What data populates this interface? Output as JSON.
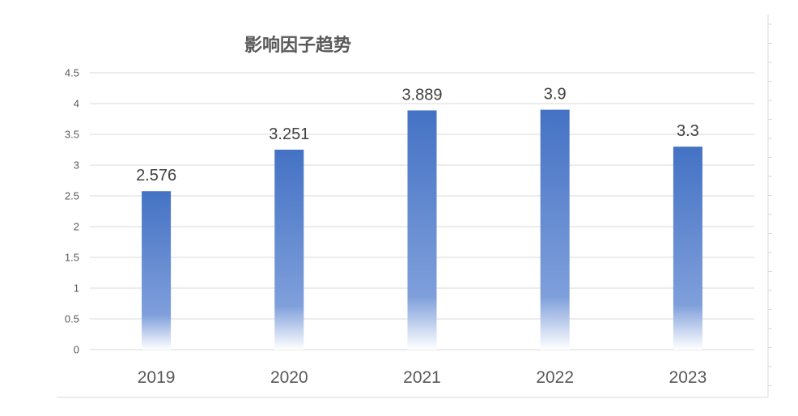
{
  "chart_data": {
    "type": "bar",
    "title": "影响因子趋势",
    "categories": [
      "2019",
      "2020",
      "2021",
      "2022",
      "2023"
    ],
    "values": [
      2.576,
      3.251,
      3.889,
      3.9,
      3.3
    ],
    "value_labels": [
      "2.576",
      "3.251",
      "3.889",
      "3.9",
      "3.3"
    ],
    "ylim": [
      0,
      4.5
    ],
    "yticks": [
      "0",
      "0.5",
      "1",
      "1.5",
      "2",
      "2.5",
      "3",
      "3.5",
      "4",
      "4.5"
    ],
    "xlabel": "",
    "ylabel": "",
    "grid": true,
    "legend": "none",
    "bar_color": "#4472C4"
  }
}
